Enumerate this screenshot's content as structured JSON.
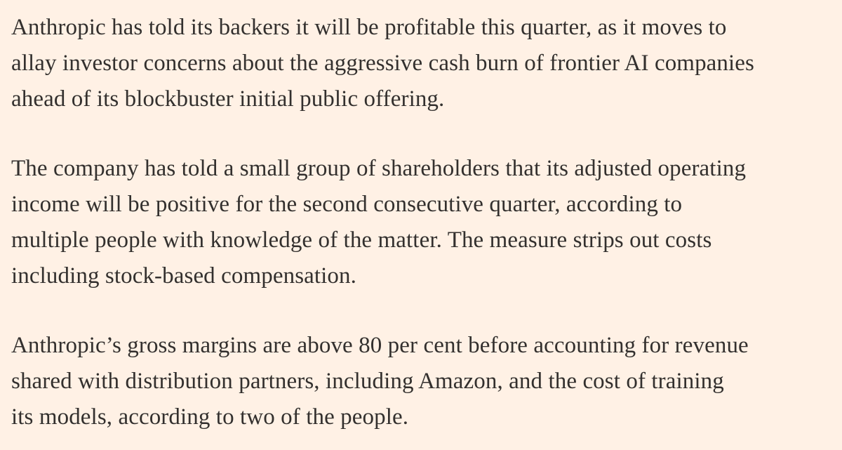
{
  "paragraphs": [
    {
      "lines": [
        "Anthropic has told its backers it will be profitable this quarter, as it moves to",
        "allay investor concerns about the aggressive cash burn of frontier AI companies",
        "ahead of its blockbuster initial public offering."
      ]
    },
    {
      "lines": [
        "The company has told a small group of shareholders that its adjusted operating",
        "income will be positive for the second consecutive quarter, according to",
        "multiple people with knowledge of the matter. The measure strips out costs",
        "including stock-based compensation."
      ]
    },
    {
      "lines": [
        "Anthropic’s gross margins are above 80 per cent before accounting for revenue",
        "shared with distribution partners, including Amazon, and the cost of training",
        "its models, according to two of the people."
      ]
    }
  ]
}
